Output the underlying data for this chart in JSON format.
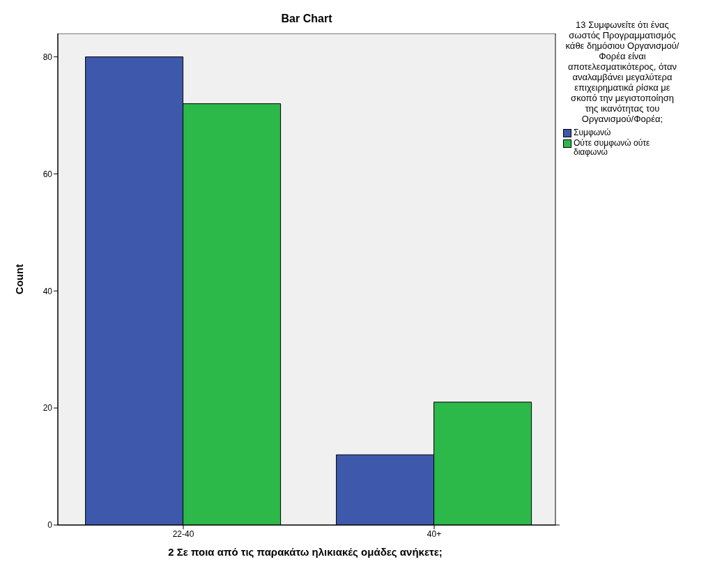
{
  "chart_data": {
    "type": "bar",
    "title": "Bar Chart",
    "xlabel": "2 Σε ποια από τις παρακάτω ηλικιακές ομάδες ανήκετε;",
    "ylabel": "Count",
    "legend_title": "13 Συμφωνείτε ότι ένας σωστός Προγραμματισμός κάθε δημόσιου Οργανισμού/Φορέα είναι αποτελεσματικότερος, όταν αναλαμβάνει μεγαλύτερα επιχειρηματικά ρίσκα με σκοπό την μεγιστοποίηση της ικανότητας του Οργανισμού/Φορέα;",
    "categories": [
      "22-40",
      "40+"
    ],
    "series": [
      {
        "name": "Συμφωνώ",
        "color": "#3e58ac",
        "values": [
          80,
          12
        ]
      },
      {
        "name": "Ούτε συμφωνώ ούτε διαφωνώ",
        "color": "#2db84a",
        "values": [
          72,
          21
        ]
      }
    ],
    "ylim": [
      0,
      84
    ],
    "yticks": [
      0,
      20,
      40,
      60,
      80
    ],
    "legend": "right"
  }
}
